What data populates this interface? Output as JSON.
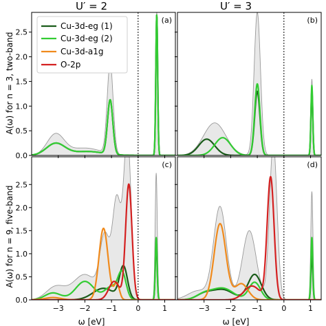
{
  "figure": {
    "col_titles": [
      "U′ = 2",
      "U′ = 3"
    ],
    "row_ylabels": [
      "A(ω) for n = 3, two-band",
      "A(ω) for n = 9, five-band"
    ],
    "xlabel": "ω [eV]"
  },
  "legend": [
    {
      "label": "Cu-3d-eg (1)",
      "color": "#1a5c1a"
    },
    {
      "label": "Cu-3d-eg (2)",
      "color": "#33cc33"
    },
    {
      "label": "Cu-3d-a1g",
      "color": "#f08a1c"
    },
    {
      "label": "O-2p",
      "color": "#d42020"
    }
  ],
  "chart_data": [
    {
      "type": "line",
      "panel": "(a)",
      "xlim": [
        -4,
        1.4
      ],
      "ylim": [
        0,
        2.9
      ],
      "xticks": [
        -3,
        -2,
        -1,
        0,
        1
      ],
      "yticks": [
        0.0,
        0.5,
        1.0,
        1.5,
        2.0,
        2.5
      ],
      "fermi_level": 0,
      "series": [
        {
          "color": "#999999",
          "fill": "#e8e8e8",
          "peaks": [
            [
              -3.1,
              0.42,
              0.32
            ],
            [
              -2.0,
              0.15,
              0.6
            ],
            [
              -1.05,
              1.85,
              0.11
            ],
            [
              0.7,
              2.92,
              0.035
            ]
          ]
        },
        {
          "color": "#1a5c1a",
          "peaks": [
            [
              -3.1,
              0.24,
              0.35
            ],
            [
              -1.9,
              0.08,
              0.6
            ],
            [
              -1.05,
              1.1,
              0.1
            ],
            [
              0.7,
              2.85,
              0.035
            ]
          ]
        },
        {
          "color": "#33cc33",
          "peaks": [
            [
              -3.1,
              0.24,
              0.35
            ],
            [
              -1.9,
              0.08,
              0.6
            ],
            [
              -1.05,
              1.1,
              0.1
            ],
            [
              0.7,
              2.85,
              0.035
            ]
          ]
        }
      ]
    },
    {
      "type": "line",
      "panel": "(b)",
      "xlim": [
        -4,
        1.4
      ],
      "ylim": [
        0,
        2.9
      ],
      "xticks": [
        -3,
        -2,
        -1,
        0,
        1
      ],
      "yticks": [
        0.0,
        0.5,
        1.0,
        1.5,
        2.0,
        2.5
      ],
      "fermi_level": 0,
      "series": [
        {
          "color": "#999999",
          "fill": "#e8e8e8",
          "peaks": [
            [
              -2.6,
              0.66,
              0.42
            ],
            [
              -1.0,
              2.9,
              0.12
            ],
            [
              1.05,
              1.55,
              0.035
            ]
          ]
        },
        {
          "color": "#1a5c1a",
          "peaks": [
            [
              -2.9,
              0.33,
              0.3
            ],
            [
              -1.0,
              1.3,
              0.1
            ],
            [
              1.05,
              1.32,
              0.035
            ]
          ]
        },
        {
          "color": "#33cc33",
          "peaks": [
            [
              -2.3,
              0.36,
              0.3
            ],
            [
              -1.0,
              1.45,
              0.1
            ],
            [
              1.05,
              1.42,
              0.035
            ]
          ]
        }
      ]
    },
    {
      "type": "line",
      "panel": "(c)",
      "xlim": [
        -4,
        1.4
      ],
      "ylim": [
        0,
        3.1
      ],
      "xticks": [
        -3,
        -2,
        -1,
        0,
        1
      ],
      "yticks": [
        0.0,
        0.5,
        1.0,
        1.5,
        2.0,
        2.5
      ],
      "fermi_level": 0,
      "series": [
        {
          "color": "#999999",
          "fill": "#e8e8e8",
          "peaks": [
            [
              -3.1,
              0.28,
              0.35
            ],
            [
              -2.0,
              0.55,
              0.45
            ],
            [
              -1.25,
              1.3,
              0.18
            ],
            [
              -0.8,
              2.15,
              0.16
            ],
            [
              -0.4,
              3.5,
              0.14
            ],
            [
              0.68,
              2.75,
              0.04
            ]
          ]
        },
        {
          "color": "#1a5c1a",
          "peaks": [
            [
              -1.3,
              0.25,
              0.4
            ],
            [
              -0.55,
              0.7,
              0.15
            ],
            [
              0.68,
              1.25,
              0.035
            ]
          ]
        },
        {
          "color": "#33cc33",
          "peaks": [
            [
              -3.2,
              0.15,
              0.3
            ],
            [
              -2.0,
              0.4,
              0.35
            ],
            [
              -1.0,
              0.28,
              0.25
            ],
            [
              -0.6,
              0.55,
              0.15
            ],
            [
              0.68,
              1.35,
              0.035
            ]
          ]
        },
        {
          "color": "#f08a1c",
          "peaks": [
            [
              -3.2,
              0.05,
              0.3
            ],
            [
              -1.3,
              1.55,
              0.17
            ],
            [
              -0.8,
              0.35,
              0.1
            ]
          ]
        },
        {
          "color": "#d42020",
          "peaks": [
            [
              -0.35,
              2.5,
              0.12
            ],
            [
              -0.9,
              0.4,
              0.2
            ]
          ]
        }
      ]
    },
    {
      "type": "line",
      "panel": "(d)",
      "xlim": [
        -4,
        1.4
      ],
      "ylim": [
        0,
        3.1
      ],
      "xticks": [
        -3,
        -2,
        -1,
        0,
        1
      ],
      "yticks": [
        0.0,
        0.5,
        1.0,
        1.5,
        2.0,
        2.5
      ],
      "fermi_level": 0,
      "series": [
        {
          "color": "#999999",
          "fill": "#e8e8e8",
          "peaks": [
            [
              -3.2,
              0.2,
              0.4
            ],
            [
              -2.4,
              2.0,
              0.24
            ],
            [
              -1.3,
              1.5,
              0.26
            ],
            [
              -0.4,
              3.4,
              0.14
            ],
            [
              1.05,
              2.35,
              0.04
            ]
          ]
        },
        {
          "color": "#1a5c1a",
          "peaks": [
            [
              -3.0,
              0.12,
              0.3
            ],
            [
              -2.3,
              0.22,
              0.4
            ],
            [
              -1.1,
              0.55,
              0.25
            ],
            [
              1.05,
              1.0,
              0.035
            ]
          ]
        },
        {
          "color": "#33cc33",
          "peaks": [
            [
              -3.0,
              0.12,
              0.3
            ],
            [
              -2.3,
              0.25,
              0.4
            ],
            [
              -1.1,
              0.38,
              0.22
            ],
            [
              1.05,
              1.35,
              0.035
            ]
          ]
        },
        {
          "color": "#f08a1c",
          "peaks": [
            [
              -2.4,
              1.65,
              0.22
            ],
            [
              -1.6,
              0.35,
              0.25
            ]
          ]
        },
        {
          "color": "#d42020",
          "peaks": [
            [
              -0.5,
              2.65,
              0.13
            ],
            [
              -1.2,
              0.3,
              0.3
            ]
          ]
        }
      ]
    }
  ]
}
